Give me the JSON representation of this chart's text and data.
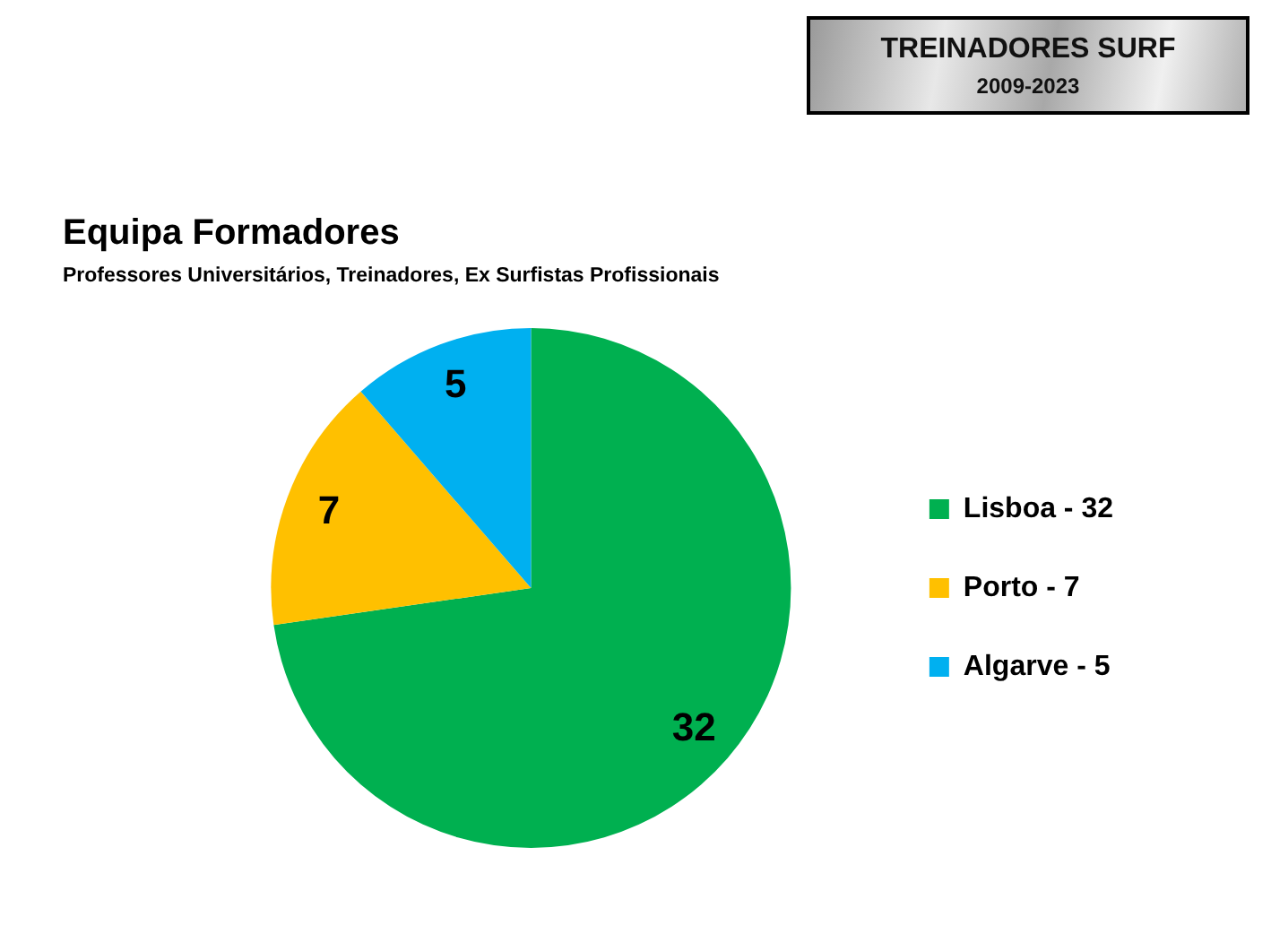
{
  "chart_data": {
    "type": "pie",
    "title": "Equipa Formadores",
    "subtitle": "Professores Universitários, Treinadores, Ex Surfistas Profissionais",
    "annotations": [
      "TREINADORES SURF",
      "2009-2023"
    ],
    "categories": [
      "Lisboa - 32",
      "Porto - 7",
      "Algarve - 5"
    ],
    "values": [
      32,
      7,
      5
    ],
    "colors": [
      "#00b050",
      "#ffc000",
      "#00b0f0"
    ],
    "data_labels": true,
    "legend": "right"
  }
}
